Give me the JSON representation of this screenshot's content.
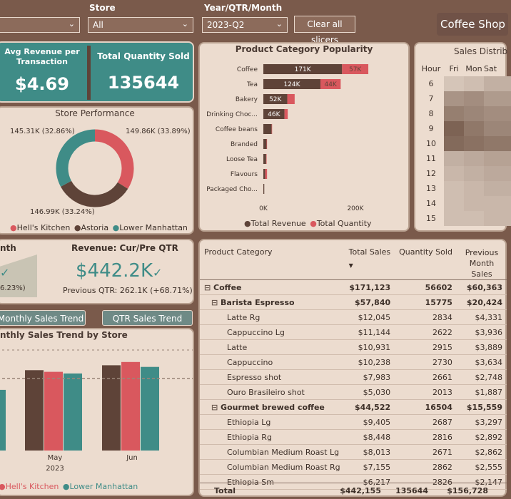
{
  "slicers": {
    "store_label": "Store",
    "store_value": "All",
    "period_label": "Year/QTR/Month",
    "period_value": "2023-Q2",
    "clear_label": "Clear all slicers",
    "title": "Coffee Shop"
  },
  "kpi": {
    "avg_rev_label": "Avg Revenue per Transaction",
    "avg_rev_value": "$4.69",
    "qty_label": "Total Quantity Sold",
    "qty_value": "135644"
  },
  "store_performance": {
    "title": "Store Performance",
    "slices": [
      {
        "label": "149.86K (33.89%)",
        "value": 149.86,
        "color": "#d9585e"
      },
      {
        "label": "146.99K (33.24%)",
        "value": 146.99,
        "color": "#5e4338"
      },
      {
        "label": "145.31K (32.86%)",
        "value": 145.31,
        "color": "#3f8c87"
      }
    ],
    "legend": [
      {
        "name": "Hell's Kitchen",
        "color": "#d9585e"
      },
      {
        "name": "Astoria",
        "color": "#5e4338"
      },
      {
        "name": "Lower Manhattan",
        "color": "#3f8c87"
      }
    ]
  },
  "popularity": {
    "title": "Product Category Popularity",
    "axis_ticks": [
      "0K",
      "200K"
    ],
    "legend": [
      {
        "name": "Total Revenue",
        "color": "#5e4338"
      },
      {
        "name": "Total Quantity",
        "color": "#d9585e"
      }
    ]
  },
  "chart_data": {
    "type": "bar",
    "title": "Product Category Popularity",
    "categories": [
      "Coffee",
      "Tea",
      "Bakery",
      "Drinking Choc...",
      "Coffee beans",
      "Branded",
      "Loose Tea",
      "Flavours",
      "Packaged Cho..."
    ],
    "series": [
      {
        "name": "Total Revenue",
        "values": [
          171,
          124,
          52,
          46,
          18,
          7,
          6,
          4,
          2
        ],
        "labels": [
          "171K",
          "124K",
          "52K",
          "46K",
          "",
          "",
          "",
          "",
          ""
        ]
      },
      {
        "name": "Total Quantity",
        "values": [
          57,
          44,
          16,
          7,
          1,
          1,
          1,
          4,
          0
        ],
        "labels": [
          "57K",
          "44K",
          "",
          "",
          "",
          "",
          "",
          "",
          ""
        ]
      }
    ],
    "xlim": [
      0,
      250
    ]
  },
  "heatmap": {
    "title": "Sales Distrib",
    "columns": [
      "Hour",
      "Fri",
      "Mon",
      "Sat"
    ],
    "hours": [
      "6",
      "7",
      "8",
      "9",
      "10",
      "11",
      "12",
      "13",
      "14",
      "15"
    ],
    "intensity": [
      [
        0.15,
        0.2,
        0.3
      ],
      [
        0.5,
        0.55,
        0.45
      ],
      [
        0.65,
        0.6,
        0.55
      ],
      [
        0.85,
        0.7,
        0.6
      ],
      [
        0.8,
        0.75,
        0.7
      ],
      [
        0.3,
        0.35,
        0.4
      ],
      [
        0.25,
        0.3,
        0.35
      ],
      [
        0.2,
        0.25,
        0.3
      ],
      [
        0.2,
        0.25,
        0.25
      ],
      [
        0.2,
        0.2,
        0.25
      ]
    ]
  },
  "revenue_cur_pre": {
    "left_title": "nth",
    "left_sub": "6.23%)",
    "title": "Revenue: Cur/Pre QTR",
    "value": "$442.2K",
    "sub": "Previous QTR: 262.1K (+68.71%)"
  },
  "buttons": {
    "monthly": "Monthly Sales Trend",
    "qtr": "QTR Sales Trend"
  },
  "trend": {
    "title": "nthly Sales Trend by Store",
    "months": [
      "May",
      "Jun"
    ],
    "year": "2023",
    "values": [
      [
        49,
        48,
        47
      ],
      [
        52,
        54,
        51
      ]
    ],
    "partial_apr": 37,
    "avg_line": 44,
    "legend": [
      {
        "name": "Hell's Kitchen",
        "color": "#d9585e"
      },
      {
        "name": "Lower Manhattan",
        "color": "#3f8c87"
      }
    ]
  },
  "table": {
    "headers": [
      "Product Category",
      "Total Sales",
      "Quantity Sold",
      "Previous Month Sales"
    ],
    "rows": [
      {
        "level": 0,
        "expander": "⊟",
        "name": "Coffee",
        "sales": "$171,123",
        "qty": "56602",
        "prev": "$60,363",
        "bold": true
      },
      {
        "level": 1,
        "expander": "⊟",
        "name": "Barista Espresso",
        "sales": "$57,840",
        "qty": "15775",
        "prev": "$20,424",
        "bold": true
      },
      {
        "level": 2,
        "expander": "",
        "name": "Latte Rg",
        "sales": "$12,045",
        "qty": "2834",
        "prev": "$4,331",
        "bold": false
      },
      {
        "level": 2,
        "expander": "",
        "name": "Cappuccino Lg",
        "sales": "$11,144",
        "qty": "2622",
        "prev": "$3,936",
        "bold": false
      },
      {
        "level": 2,
        "expander": "",
        "name": "Latte",
        "sales": "$10,931",
        "qty": "2915",
        "prev": "$3,889",
        "bold": false
      },
      {
        "level": 2,
        "expander": "",
        "name": "Cappuccino",
        "sales": "$10,238",
        "qty": "2730",
        "prev": "$3,634",
        "bold": false
      },
      {
        "level": 2,
        "expander": "",
        "name": "Espresso shot",
        "sales": "$7,983",
        "qty": "2661",
        "prev": "$2,748",
        "bold": false
      },
      {
        "level": 2,
        "expander": "",
        "name": "Ouro Brasileiro shot",
        "sales": "$5,030",
        "qty": "2013",
        "prev": "$1,887",
        "bold": false
      },
      {
        "level": 1,
        "expander": "⊟",
        "name": "Gourmet brewed coffee",
        "sales": "$44,522",
        "qty": "16504",
        "prev": "$15,559",
        "bold": true
      },
      {
        "level": 2,
        "expander": "",
        "name": "Ethiopia Lg",
        "sales": "$9,405",
        "qty": "2687",
        "prev": "$3,297",
        "bold": false
      },
      {
        "level": 2,
        "expander": "",
        "name": "Ethiopia Rg",
        "sales": "$8,448",
        "qty": "2816",
        "prev": "$2,892",
        "bold": false
      },
      {
        "level": 2,
        "expander": "",
        "name": "Columbian Medium Roast Lg",
        "sales": "$8,013",
        "qty": "2671",
        "prev": "$2,862",
        "bold": false
      },
      {
        "level": 2,
        "expander": "",
        "name": "Columbian Medium Roast Rg",
        "sales": "$7,155",
        "qty": "2862",
        "prev": "$2,555",
        "bold": false
      },
      {
        "level": 2,
        "expander": "",
        "name": "Ethiopia Sm",
        "sales": "$6,217",
        "qty": "2826",
        "prev": "$2,147",
        "bold": false
      }
    ],
    "total": {
      "name": "Total",
      "sales": "$442,155",
      "qty": "135644",
      "prev": "$156,728"
    }
  }
}
